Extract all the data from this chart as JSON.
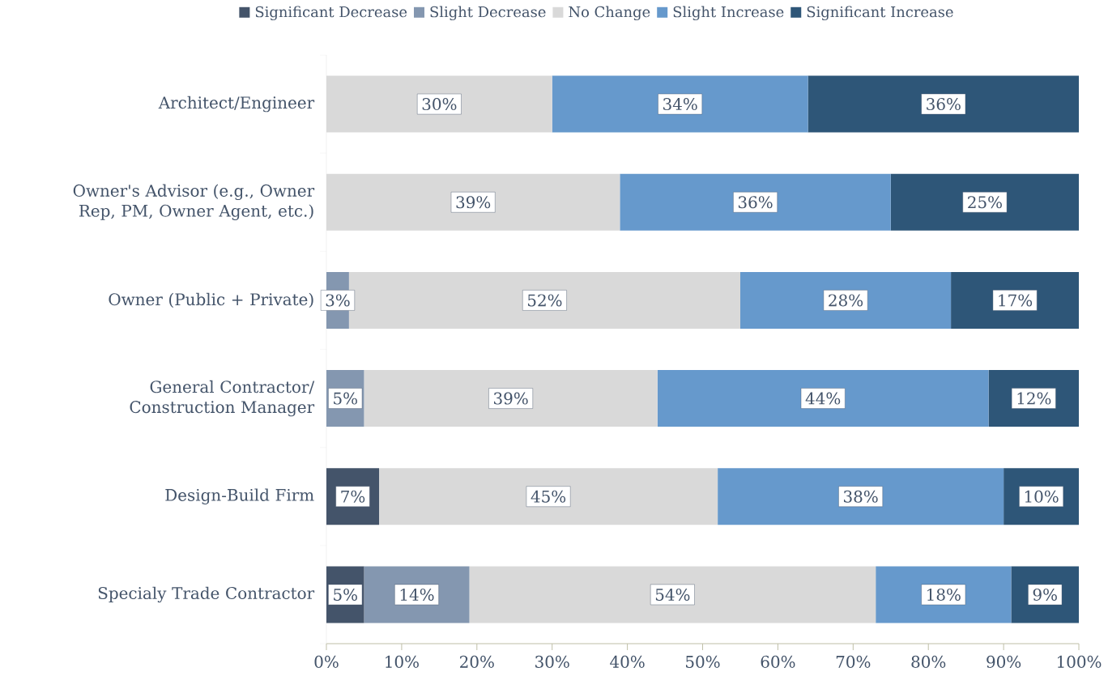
{
  "chart_data": {
    "type": "bar",
    "orientation": "horizontal",
    "stacked": true,
    "categories": [
      "Architect/Engineer",
      "Owner's Advisor (e.g., Owner Rep, PM, Owner Agent, etc.)",
      "Owner (Public + Private)",
      "General Contractor/ Construction Manager",
      "Design-Build Firm",
      "Specialy Trade Contractor"
    ],
    "series": [
      {
        "name": "Significant Decrease",
        "color": "#44546a",
        "values": [
          0,
          0,
          0,
          0,
          7,
          5
        ],
        "value_labels": [
          null,
          null,
          null,
          null,
          "7%",
          "5%"
        ]
      },
      {
        "name": "Slight Decrease",
        "color": "#8497b0",
        "values": [
          0,
          0,
          3,
          5,
          0,
          14
        ],
        "value_labels": [
          null,
          null,
          "3%",
          "5%",
          null,
          "14%"
        ]
      },
      {
        "name": "No Change",
        "color": "#d9d9d9",
        "values": [
          30,
          39,
          52,
          39,
          45,
          54
        ],
        "value_labels": [
          "30%",
          "39%",
          "52%",
          "39%",
          "45%",
          "54%"
        ]
      },
      {
        "name": "Slight Increase",
        "color": "#6699cc",
        "values": [
          34,
          36,
          28,
          44,
          38,
          18
        ],
        "value_labels": [
          "34%",
          "36%",
          "28%",
          "44%",
          "38%",
          "18%"
        ]
      },
      {
        "name": "Significant Increase",
        "color": "#2e5678",
        "values": [
          36,
          25,
          17,
          12,
          10,
          9
        ],
        "value_labels": [
          "36%",
          "25%",
          "17%",
          "12%",
          "10%",
          "9%"
        ]
      }
    ],
    "xlim": [
      0,
      100
    ],
    "xticks": [
      {
        "value": 0,
        "label": "0%"
      },
      {
        "value": 10,
        "label": "10%"
      },
      {
        "value": 20,
        "label": "20%"
      },
      {
        "value": 30,
        "label": "30%"
      },
      {
        "value": 40,
        "label": "40%"
      },
      {
        "value": 50,
        "label": "50%"
      },
      {
        "value": 60,
        "label": "60%"
      },
      {
        "value": 70,
        "label": "70%"
      },
      {
        "value": 80,
        "label": "80%"
      },
      {
        "value": 90,
        "label": "90%"
      },
      {
        "value": 100,
        "label": "100%"
      }
    ],
    "legend": "top"
  }
}
